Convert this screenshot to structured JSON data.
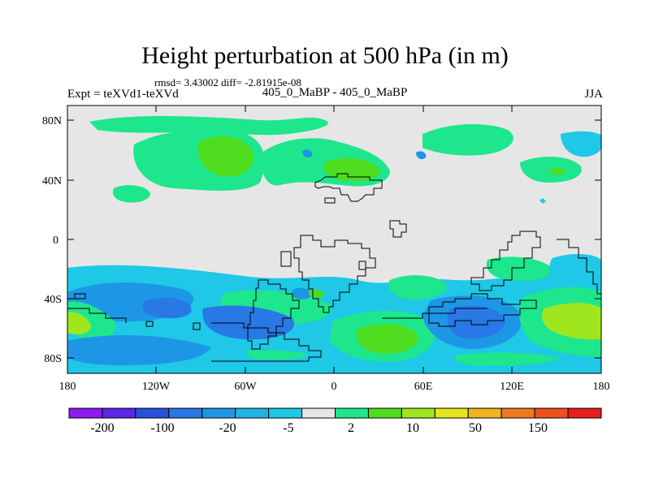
{
  "title": "Height perturbation at 500 hPa (in m)",
  "stats": "rmsd= 3.43002 diff= -2.81915e-08",
  "experiment": "Expt = teXVd1-teXVd",
  "subtitle": "405_0_MaBP - 405_0_MaBP",
  "season": "JJA",
  "lat_labels": [
    "80N",
    "40N",
    "0",
    "40S",
    "80S"
  ],
  "lon_labels": [
    "180",
    "120W",
    "60W",
    "0",
    "60E",
    "120E",
    "180"
  ],
  "colorbar": {
    "colors": [
      "#8c1cf0",
      "#5a28e6",
      "#2850dc",
      "#2878e6",
      "#1e96e6",
      "#1eb4e6",
      "#1ec8e6",
      "#e6e6e6",
      "#1ee68c",
      "#50dc1e",
      "#a0e61e",
      "#e6e61e",
      "#f0b41e",
      "#f0781e",
      "#f0501e",
      "#e61e1e"
    ],
    "labels": [
      "-200",
      "-100",
      "-20",
      "-5",
      "2",
      "10",
      "50",
      "150"
    ]
  },
  "palette": {
    "background_field": "#e6e6e6",
    "light_cyan": "#1ec8e6",
    "mid_blue": "#1e96e6",
    "deep_blue": "#2878e6",
    "green": "#1ee68c",
    "bright_green": "#50dc1e",
    "yellow_green": "#a0e61e"
  }
}
